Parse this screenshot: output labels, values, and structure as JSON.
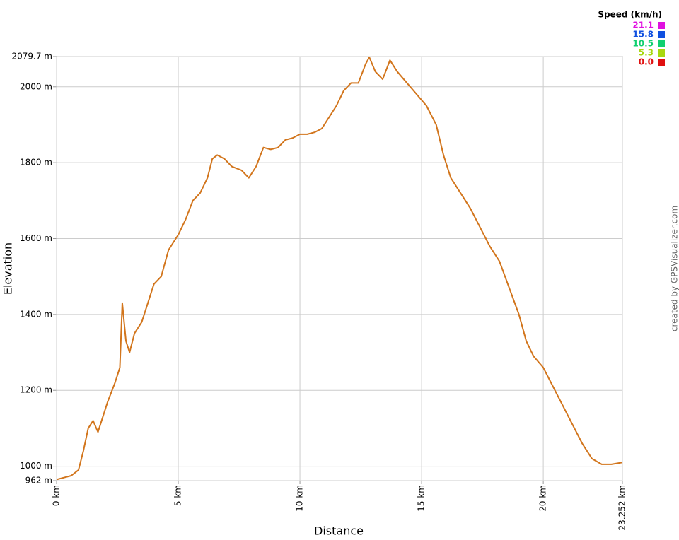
{
  "chart_data": {
    "type": "line",
    "x_label": "Distance",
    "y_label": "Elevation",
    "credit": "created by GPSVisualizer.com",
    "xlim": [
      0,
      23.252
    ],
    "ylim": [
      962,
      2079.7
    ],
    "xticks": [
      {
        "value": 0,
        "label": "0 km"
      },
      {
        "value": 5,
        "label": "5 km"
      },
      {
        "value": 10,
        "label": "10 km"
      },
      {
        "value": 15,
        "label": "15 km"
      },
      {
        "value": 20,
        "label": "20 km"
      },
      {
        "value": 23.252,
        "label": "23.252 km"
      }
    ],
    "yticks": [
      {
        "value": 962,
        "label": "962 m"
      },
      {
        "value": 1000,
        "label": "1000 m"
      },
      {
        "value": 1200,
        "label": "1200 m"
      },
      {
        "value": 1400,
        "label": "1400 m"
      },
      {
        "value": 1600,
        "label": "1600 m"
      },
      {
        "value": 1800,
        "label": "1800 m"
      },
      {
        "value": 2000,
        "label": "2000 m"
      },
      {
        "value": 2079.7,
        "label": "2079.7 m"
      }
    ],
    "grid": true,
    "x": [
      0,
      0.3,
      0.6,
      0.9,
      1.1,
      1.3,
      1.5,
      1.7,
      1.9,
      2.1,
      2.4,
      2.6,
      2.7,
      2.85,
      3.0,
      3.2,
      3.5,
      3.8,
      4.0,
      4.3,
      4.6,
      5.0,
      5.3,
      5.6,
      5.9,
      6.2,
      6.4,
      6.6,
      6.9,
      7.2,
      7.6,
      7.9,
      8.2,
      8.5,
      8.8,
      9.1,
      9.4,
      9.7,
      10.0,
      10.3,
      10.6,
      10.9,
      11.2,
      11.5,
      11.8,
      12.1,
      12.4,
      12.7,
      12.85,
      13.1,
      13.4,
      13.7,
      14.0,
      14.4,
      14.8,
      15.2,
      15.6,
      15.9,
      16.2,
      16.6,
      17.0,
      17.4,
      17.8,
      18.2,
      18.6,
      19.0,
      19.3,
      19.6,
      20.0,
      20.4,
      20.8,
      21.2,
      21.6,
      22.0,
      22.4,
      22.8,
      23.252
    ],
    "series": [
      {
        "color": "#d2751c",
        "values": [
          965,
          970,
          975,
          990,
          1040,
          1100,
          1120,
          1090,
          1130,
          1170,
          1220,
          1260,
          1430,
          1330,
          1300,
          1350,
          1380,
          1440,
          1480,
          1500,
          1570,
          1610,
          1650,
          1700,
          1720,
          1760,
          1810,
          1820,
          1810,
          1790,
          1780,
          1760,
          1790,
          1840,
          1835,
          1840,
          1860,
          1865,
          1875,
          1875,
          1880,
          1890,
          1920,
          1950,
          1990,
          2010,
          2010,
          2060,
          2078,
          2040,
          2020,
          2070,
          2040,
          2010,
          1980,
          1950,
          1900,
          1820,
          1760,
          1720,
          1680,
          1630,
          1580,
          1540,
          1470,
          1400,
          1330,
          1290,
          1260,
          1210,
          1160,
          1110,
          1060,
          1020,
          1005,
          1005,
          1010
        ]
      }
    ],
    "legend": {
      "title": "Speed (km/h)",
      "corner": "top-right",
      "items": [
        {
          "value": 21.1,
          "color": "#e010e0"
        },
        {
          "value": 15.8,
          "color": "#1050e0"
        },
        {
          "value": 10.5,
          "color": "#10d070"
        },
        {
          "value": 5.3,
          "color": "#a8d810"
        },
        {
          "value": {
            "value": 0,
            "label": "0.0"
          },
          "color": "#e01010"
        }
      ]
    }
  }
}
